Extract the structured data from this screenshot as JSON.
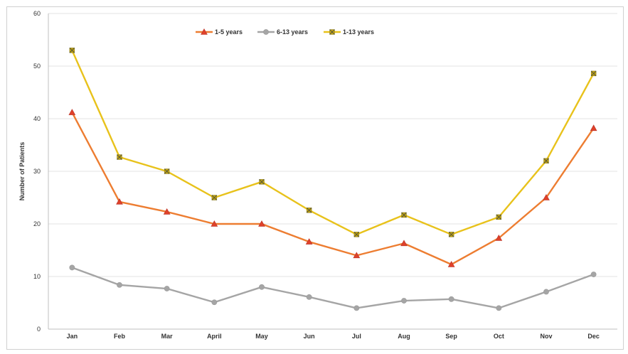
{
  "chart_data": {
    "type": "line",
    "title": "",
    "xlabel": "",
    "ylabel": "Number of Patients",
    "ylim": [
      0,
      60
    ],
    "yticks": [
      0,
      10,
      20,
      30,
      40,
      50,
      60
    ],
    "grid": "horizontal",
    "legend_position": "top-center",
    "categories": [
      "Jan",
      "Feb",
      "Mar",
      "April",
      "May",
      "Jun",
      "Jul",
      "Aug",
      "Sep",
      "Oct",
      "Nov",
      "Dec"
    ],
    "series": [
      {
        "name": "1-5 years",
        "color": "#ED7D31",
        "marker": "triangle",
        "values": [
          41.2,
          24.2,
          22.3,
          20.0,
          20.0,
          16.6,
          14.0,
          16.3,
          12.3,
          17.3,
          25.0,
          38.2
        ]
      },
      {
        "name": "6-13 years",
        "color": "#A5A5A5",
        "marker": "circle",
        "values": [
          11.7,
          8.4,
          7.7,
          5.1,
          8.0,
          6.1,
          4.0,
          5.4,
          5.7,
          4.0,
          7.1,
          10.4
        ]
      },
      {
        "name": "1-13 years",
        "color": "#E8C21B",
        "marker": "x-square",
        "values": [
          53.0,
          32.7,
          30.0,
          25.0,
          28.0,
          22.6,
          18.0,
          21.7,
          18.0,
          21.3,
          32.0,
          48.6
        ]
      }
    ]
  }
}
